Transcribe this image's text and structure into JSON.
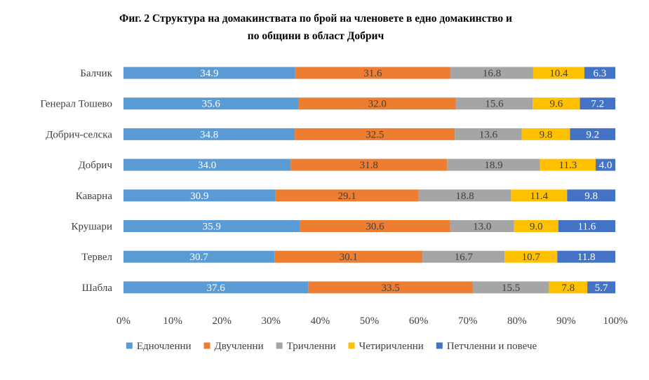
{
  "title_line1": "Фиг. 2 Структура на домакинствата по брой на членовете в едно домакинство и",
  "title_line2": "по общини в област Добрич",
  "chart_data": {
    "type": "bar",
    "orientation": "horizontal",
    "stacked": "percent",
    "categories": [
      "Балчик",
      "Генерал Тошево",
      "Добрич-селска",
      "Добрич",
      "Каварна",
      "Крушари",
      "Тервел",
      "Шабла"
    ],
    "series": [
      {
        "name": "Едночленни",
        "color": "#5B9BD5",
        "label_color": "#ffffff",
        "values": [
          34.9,
          35.6,
          34.8,
          34.0,
          30.9,
          35.9,
          30.7,
          37.6
        ]
      },
      {
        "name": "Двучленни",
        "color": "#ED7D31",
        "label_color": "#404040",
        "values": [
          31.6,
          32.0,
          32.5,
          31.8,
          29.1,
          30.6,
          30.1,
          33.5
        ]
      },
      {
        "name": "Тричленни",
        "color": "#A5A5A5",
        "label_color": "#404040",
        "values": [
          16.8,
          15.6,
          13.6,
          18.9,
          18.8,
          13.0,
          16.7,
          15.5
        ]
      },
      {
        "name": "Четиричленни",
        "color": "#FFC000",
        "label_color": "#404040",
        "values": [
          10.4,
          9.6,
          9.8,
          11.3,
          11.4,
          9.0,
          10.7,
          7.8
        ]
      },
      {
        "name": "Петчленни и повече",
        "color": "#4472C4",
        "label_color": "#ffffff",
        "values": [
          6.3,
          7.2,
          9.2,
          4.0,
          9.8,
          11.6,
          11.8,
          5.7
        ]
      }
    ],
    "xticks": [
      "0%",
      "10%",
      "20%",
      "30%",
      "40%",
      "50%",
      "60%",
      "70%",
      "80%",
      "90%",
      "100%"
    ],
    "xlim": [
      0,
      100
    ],
    "legend": "bottom",
    "grid": false
  }
}
